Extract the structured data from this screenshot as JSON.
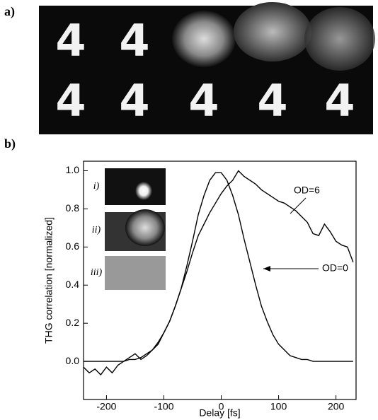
{
  "panel_a": {
    "label": "a)",
    "rows": [
      [
        "4",
        "4"
      ],
      [
        "4",
        "4",
        "4",
        "4",
        "4"
      ]
    ]
  },
  "panel_b": {
    "label": "b)",
    "insets": [
      "i)",
      "ii)",
      "iii)"
    ]
  },
  "chart_data": {
    "type": "line",
    "xlabel": "Delay [fs]",
    "ylabel": "THG correlation [normalized]",
    "x": [
      -240,
      -230,
      -220,
      -210,
      -200,
      -190,
      -180,
      -170,
      -160,
      -150,
      -140,
      -130,
      -120,
      -110,
      -100,
      -90,
      -80,
      -70,
      -60,
      -50,
      -40,
      -30,
      -20,
      -10,
      0,
      10,
      20,
      30,
      40,
      50,
      60,
      70,
      80,
      90,
      100,
      110,
      120,
      130,
      140,
      150,
      160,
      170,
      180,
      190,
      200,
      210,
      220,
      230
    ],
    "series": [
      {
        "name": "OD=0",
        "color": "#000000",
        "values": [
          0,
          0,
          0,
          0,
          0,
          0,
          0,
          0,
          0.01,
          0.01,
          0.02,
          0.04,
          0.06,
          0.09,
          0.15,
          0.21,
          0.29,
          0.38,
          0.5,
          0.63,
          0.77,
          0.87,
          0.95,
          0.99,
          0.99,
          0.95,
          0.87,
          0.77,
          0.64,
          0.52,
          0.4,
          0.29,
          0.21,
          0.14,
          0.09,
          0.06,
          0.03,
          0.02,
          0.01,
          0.01,
          0,
          0,
          0,
          0,
          0,
          0,
          0,
          0
        ]
      },
      {
        "name": "OD=6",
        "color": "#000000",
        "values": [
          -0.03,
          -0.06,
          -0.04,
          -0.07,
          -0.03,
          -0.06,
          -0.02,
          0,
          0.02,
          0.04,
          0.01,
          0.03,
          0.06,
          0.1,
          0.15,
          0.21,
          0.29,
          0.38,
          0.47,
          0.57,
          0.66,
          0.72,
          0.78,
          0.83,
          0.88,
          0.92,
          0.95,
          1.0,
          0.97,
          0.95,
          0.93,
          0.9,
          0.88,
          0.86,
          0.84,
          0.83,
          0.81,
          0.79,
          0.76,
          0.73,
          0.67,
          0.66,
          0.72,
          0.68,
          0.63,
          0.61,
          0.6,
          0.52
        ]
      }
    ],
    "xlim": [
      -240,
      235
    ],
    "ylim": [
      -0.2,
      1.05
    ],
    "xticks": [
      -200,
      -100,
      0,
      100,
      200
    ],
    "yticks": [
      {
        "value": 0,
        "label": "0.0"
      },
      0.2,
      0.4,
      0.6,
      0.8,
      {
        "value": 1,
        "label": "1.0"
      }
    ]
  }
}
